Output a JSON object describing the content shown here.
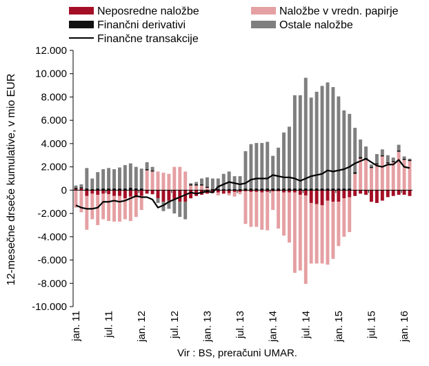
{
  "chart_data": {
    "type": "bar",
    "subtype": "stacked bar with line",
    "ylabel": "12-mesečne drseče kumulative, v mio EUR",
    "source_note": "Vir : BS, preračuni UMAR.",
    "ylim": [
      -10000,
      12000
    ],
    "y_ticks": [
      "-10.000",
      "-8.000",
      "-6.000",
      "-4.000",
      "-2.000",
      "0",
      "2.000",
      "4.000",
      "6.000",
      "8.000",
      "10.000",
      "12.000"
    ],
    "y_tick_values": [
      -10000,
      -8000,
      -6000,
      -4000,
      -2000,
      0,
      2000,
      4000,
      6000,
      8000,
      10000,
      12000
    ],
    "x_tick_labels": [
      "jan. 11",
      "jul. 11",
      "jan. 12",
      "jul. 12",
      "jan. 13",
      "jul. 13",
      "jan. 14",
      "jul. 14",
      "jan. 15",
      "jul. 15",
      "jan. 16"
    ],
    "x_tick_every": 6,
    "grid": false,
    "legend_position": "top",
    "periods": 62,
    "series": [
      {
        "name": "Neposredne naložbe",
        "color": "#a50f25",
        "values": [
          100,
          150,
          -500,
          -300,
          -400,
          -300,
          -350,
          -500,
          -500,
          -700,
          -550,
          -600,
          -500,
          -300,
          -350,
          -700,
          -1000,
          -900,
          -800,
          -1000,
          -1000,
          -700,
          -500,
          -400,
          -300,
          -250,
          -200,
          -300,
          -250,
          -150,
          -150,
          -100,
          -150,
          -150,
          -200,
          -150,
          -100,
          -100,
          -200,
          -200,
          -200,
          -400,
          -450,
          -1100,
          -1200,
          -1300,
          -900,
          -1000,
          -1000,
          -700,
          -600,
          -500,
          -300,
          -400,
          -1000,
          -1100,
          -900,
          -600,
          -500,
          -400,
          -400,
          -500
        ]
      },
      {
        "name": "Naložbe v vredn. papirje",
        "color": "#e5a0a3",
        "values": [
          -1500,
          -1900,
          -2900,
          -2200,
          -2600,
          -2200,
          -2300,
          -2200,
          -2200,
          -1800,
          -2100,
          -1700,
          -1200,
          1700,
          1600,
          1600,
          1500,
          1400,
          2000,
          2000,
          1600,
          400,
          400,
          400,
          200,
          0,
          -250,
          0,
          -200,
          -400,
          -200,
          -2800,
          -3000,
          -3000,
          -3200,
          -3300,
          -1600,
          -3200,
          -3700,
          -4300,
          -6900,
          -6500,
          -7600,
          -5200,
          -5100,
          -5000,
          -5500,
          -4900,
          -3800,
          -3300,
          -3000,
          1400,
          2700,
          2600,
          1900,
          2200,
          2900,
          2300,
          2400,
          3300,
          2600,
          2500
        ]
      },
      {
        "name": "Finančni derivativi",
        "color": "#111111",
        "values": [
          100,
          100,
          150,
          100,
          150,
          150,
          150,
          150,
          150,
          150,
          200,
          150,
          150,
          100,
          100,
          0,
          0,
          0,
          0,
          0,
          0,
          100,
          100,
          100,
          100,
          100,
          100,
          100,
          100,
          100,
          100,
          150,
          150,
          150,
          150,
          150,
          150,
          150,
          150,
          150,
          150,
          150,
          150,
          150,
          150,
          150,
          150,
          150,
          150,
          150,
          150,
          150,
          150,
          150,
          100,
          100,
          100,
          100,
          100,
          100,
          100,
          100
        ]
      },
      {
        "name": "Ostale naložbe",
        "color": "#7f7f7f",
        "values": [
          200,
          250,
          1750,
          900,
          1400,
          1650,
          1750,
          1650,
          1800,
          2000,
          2100,
          1850,
          1700,
          600,
          300,
          -400,
          -800,
          -700,
          -1200,
          -1300,
          -1500,
          100,
          200,
          500,
          800,
          900,
          900,
          1300,
          1500,
          1100,
          1100,
          3200,
          3800,
          3900,
          3900,
          4000,
          2800,
          3500,
          4800,
          5300,
          8000,
          8000,
          9500,
          7800,
          8300,
          8800,
          9100,
          8700,
          7900,
          6700,
          6400,
          3800,
          1500,
          1000,
          200,
          800,
          500,
          600,
          300,
          500,
          200,
          100
        ]
      },
      {
        "name": "Finančne transakcije",
        "type": "line",
        "color": "#000000",
        "values": [
          -1300,
          -1500,
          -1600,
          -1600,
          -1500,
          -1000,
          -1000,
          -900,
          -1000,
          -900,
          -700,
          -500,
          -600,
          -600,
          -800,
          -1500,
          -1300,
          -1000,
          -800,
          -600,
          -400,
          -200,
          -300,
          -200,
          -100,
          -200,
          300,
          500,
          700,
          600,
          500,
          600,
          900,
          1000,
          1000,
          1000,
          1300,
          1200,
          1100,
          1100,
          1000,
          800,
          1000,
          1200,
          1300,
          1400,
          1700,
          1600,
          1700,
          1800,
          2000,
          2300,
          2500,
          2700,
          2400,
          2100,
          2000,
          2200,
          2200,
          2600,
          2000,
          1900
        ]
      }
    ]
  }
}
